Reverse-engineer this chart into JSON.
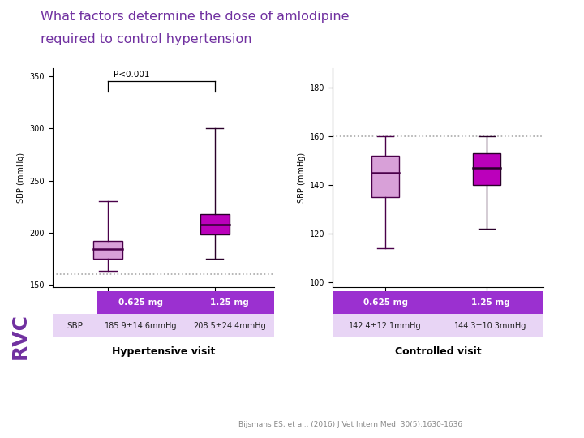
{
  "title_line1": "What factors determine the dose of amlodipine",
  "title_line2": "required to control hypertension",
  "title_color": "#7030A0",
  "bg_color": "#FFFFFF",
  "hyp_plot": {
    "x_positions": [
      0.625,
      1.25
    ],
    "x_labels": [
      "0.625",
      "1.25"
    ],
    "xlim": [
      0.3,
      1.6
    ],
    "ylim": [
      148,
      358
    ],
    "yticks": [
      150,
      200,
      250,
      300,
      350
    ],
    "ylabel": "SBP (mmHg)",
    "dashed_line_y": 160,
    "p_value_text": "P<0.001",
    "box1": {
      "q1": 175,
      "median": 184,
      "q3": 192,
      "whislo": 163,
      "whishi": 230,
      "facecolor": "#D8A0D8",
      "edgecolor": "#4A004A",
      "mediancolor": "#4A004A"
    },
    "box2": {
      "q1": 198,
      "median": 208,
      "q3": 218,
      "whislo": 175,
      "whishi": 300,
      "facecolor": "#BB00BB",
      "edgecolor": "#2A002A",
      "mediancolor": "#2A002A"
    },
    "table_header_color": "#9B30D0",
    "table_row_color": "#E8D5F5",
    "table_text_color_header": "#FFFFFF",
    "table_text_color_row": "#222222",
    "table_col1_header": "0.625 mg",
    "table_col2_header": "1.25 mg",
    "table_row_label": "SBP",
    "table_val1": "185.9±14.6mmHg",
    "table_val2": "208.5±24.4mmHg",
    "visit_label": "Hypertensive visit"
  },
  "ctrl_plot": {
    "x_positions": [
      0.625,
      1.25
    ],
    "x_labels": [
      "0.625",
      "1.25"
    ],
    "xlim": [
      0.3,
      1.6
    ],
    "ylim": [
      98,
      188
    ],
    "yticks": [
      100,
      120,
      140,
      160,
      180
    ],
    "ylabel": "SBP (mmHg)",
    "dashed_line_y": 160,
    "box1": {
      "q1": 135,
      "median": 145,
      "q3": 152,
      "whislo": 114,
      "whishi": 160,
      "facecolor": "#D8A0D8",
      "edgecolor": "#4A004A",
      "mediancolor": "#4A004A"
    },
    "box2": {
      "q1": 140,
      "median": 147,
      "q3": 153,
      "whislo": 122,
      "whishi": 160,
      "facecolor": "#BB00BB",
      "edgecolor": "#2A002A",
      "mediancolor": "#2A002A"
    },
    "table_header_color": "#9B30D0",
    "table_row_color": "#E8D5F5",
    "table_text_color_header": "#FFFFFF",
    "table_text_color_row": "#222222",
    "table_col1_header": "0.625 mg",
    "table_col2_header": "1.25 mg",
    "table_val1": "142.4±12.1mmHg",
    "table_val2": "144.3±10.3mmHg",
    "visit_label": "Controlled visit"
  },
  "rvc_color": "#7030A0",
  "citation": "Bijsmans ES, et al., (2016) J Vet Intern Med: 30(5):1630-1636",
  "citation_color": "#888888"
}
